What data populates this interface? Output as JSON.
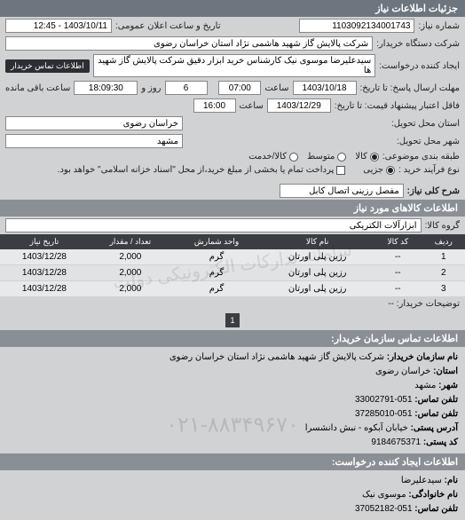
{
  "headers": {
    "main": "جزئیات اطلاعات نیاز",
    "items": "اطلاعات کالاهای مورد نیاز",
    "buyerOrg": "اطلاعات تماس سازمان خریدار:",
    "requester": "اطلاعات ایجاد کننده درخواست:"
  },
  "labels": {
    "reqNo": "شماره نیاز:",
    "announceDate": "تاریخ و ساعت اعلان عمومی:",
    "buyer": "شرکت دستگاه خریدار:",
    "creator": "ایجاد کننده درخواست:",
    "creatorContact": "اطلاعات تماس خریدار",
    "replyDeadline": "مهلت ارسال پاسخ: تا تاریخ:",
    "saat": "ساعت",
    "rooz": "روز و",
    "remain": "ساعت باقی مانده",
    "validUntil": "فاقل اعتبار پیشنهاد قیمت: تا تاریخ:",
    "province": "استان محل تحویل:",
    "city": "شهر محل تحویل:",
    "topicCat": "طبقه بندی موضوعی:",
    "goods": "کالا",
    "medium": "متوسط",
    "service": "کالا/خدمت",
    "procType": "نوع فرآیند خرید :",
    "partial": "جزیی",
    "payNote": "پرداخت تمام یا بخشی از مبلغ خرید،از محل \"اسناد خزانه اسلامی\" خواهد بود.",
    "generalTitle": "شرح کلی نیاز:",
    "groupGoods": "گروه کالا:",
    "orgName": "نام سازمان خریدار:",
    "provinceLbl": "استان:",
    "cityLbl": "شهر:",
    "phone": "تلفن تماس:",
    "postAddr": "آدرس پستی:",
    "postCode": "کد پستی:",
    "name": "نام:",
    "family": "نام خانوادگی:"
  },
  "values": {
    "reqNo": "1103092134001743",
    "announceDate": "1403/10/11 - 12:45",
    "buyer": "شرکت پالایش گاز شهید هاشمی نژاد   استان خراسان رضوی",
    "creator": "سیدعلیرضا موسوی نیک کارشناس خرید ابزار دقیق شرکت پالایش گاز شهید ها",
    "replyDate": "1403/10/18",
    "replyTime": "07:00",
    "daysLeft": "6",
    "hoursLeft": "18:09:30",
    "validDate": "1403/12/29",
    "validTime": "16:00",
    "province": "خراسان رضوی",
    "city": "مشهد",
    "generalTitle": "مفصل رزینی اتصال کابل",
    "groupGoods": "ابزارآلات الکتریکی",
    "orgNameFull": "شرکت پالایش گاز شهید هاشمی نژاد استان خراسان رضوی",
    "provinceInfo": "خراسان رضوی",
    "cityInfo": "مشهد",
    "phone1": "051-33002791",
    "phone2": "051-37285010",
    "postAddr": "خیابان آبکوه - نبش دانشسرا",
    "postCode": "9184675371",
    "reqName": "سیدعلیرضا",
    "reqFamily": "موسوی نیک",
    "reqPhone": "051-37052182"
  },
  "table": {
    "cols": [
      "ردیف",
      "کد کالا",
      "نام کالا",
      "واحد شمارش",
      "تعداد / مقدار",
      "تاریخ نیاز"
    ],
    "rows": [
      [
        "1",
        "--",
        "رزین پلی اورتان",
        "گرم",
        "2,000",
        "1403/12/28"
      ],
      [
        "2",
        "--",
        "رزین پلی اورتان",
        "گرم",
        "2,000",
        "1403/12/28"
      ],
      [
        "3",
        "--",
        "رزین پلی اورتان",
        "گرم",
        "2,000",
        "1403/12/28"
      ]
    ],
    "watermark": "سامانه تدارکات الکترونیکی دولت"
  },
  "pageNum": "1",
  "pagerLabel": "توضیحات خریدار:  --",
  "phoneWatermark": "۰۲۱-۸۸۳۴۹۶۷۰"
}
